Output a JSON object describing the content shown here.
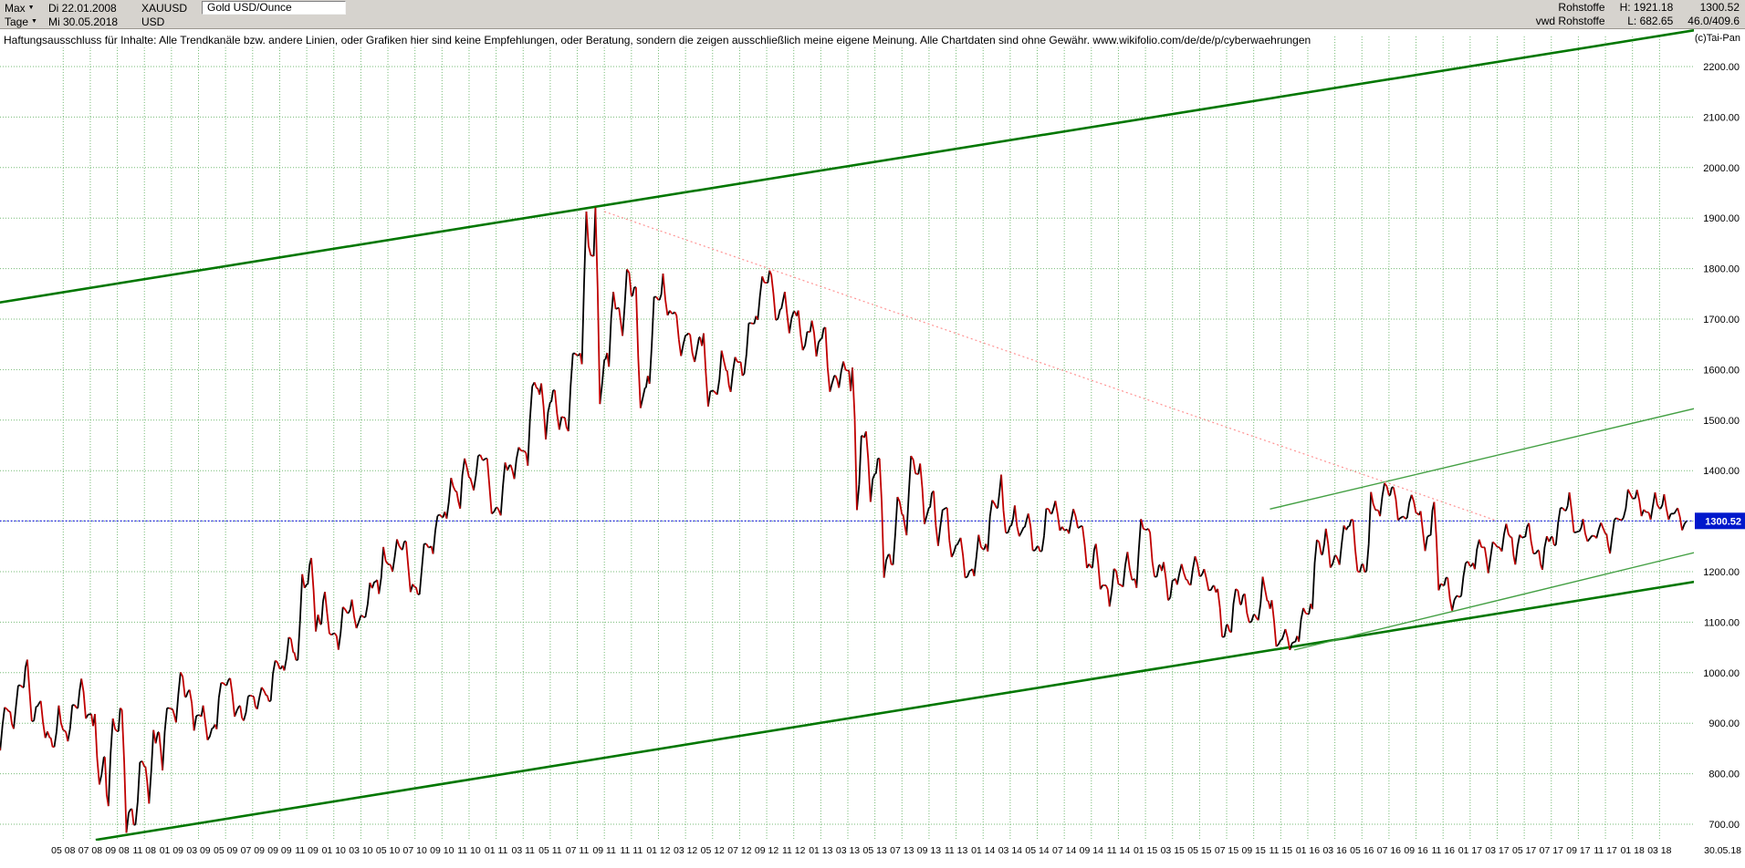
{
  "app": {
    "toolbar": {
      "range_selector": "Max",
      "period_selector": "Tage",
      "start_date": "Di 22.01.2008",
      "end_date": "Mi 30.05.2018",
      "symbol": "XAUUSD",
      "currency": "USD",
      "instrument_name": "Gold USD/Ounce",
      "category": "Rohstoffe",
      "provider": "vwd Rohstoffe",
      "high_label": "H: 1921.18",
      "low_label": "L: 682.65",
      "last_price": "1300.52",
      "change_info": "46.0/409.6"
    },
    "copyright": "(c)Tai-Pan",
    "disclaimer": "Haftungsausschluss für Inhalte: Alle Trendkanäle bzw. andere Linien, oder Grafiken hier sind keine Empfehlungen, oder Beratung, sondern die zeigen ausschließlich meine eigene Meinung. Alle Chartdaten sind ohne Gewähr.  www.wikifolio.com/de/de/p/cyberwaehrungen"
  },
  "axis": {
    "y_labels": [
      "2200.00",
      "2100.00",
      "2000.00",
      "1900.00",
      "1800.00",
      "1700.00",
      "1600.00",
      "1500.00",
      "1400.00",
      "1300.00",
      "1200.00",
      "1100.00",
      "1000.00",
      "900.00",
      "800.00",
      "700.00"
    ],
    "x_labels": [
      "05 08",
      "07 08",
      "09 08",
      "11 08",
      "01 09",
      "03 09",
      "05 09",
      "07 09",
      "09 09",
      "11 09",
      "01 10",
      "03 10",
      "05 10",
      "07 10",
      "09 10",
      "11 10",
      "01 11",
      "03 11",
      "05 11",
      "07 11",
      "09 11",
      "11 11",
      "01 12",
      "03 12",
      "05 12",
      "07 12",
      "09 12",
      "11 12",
      "01 13",
      "03 13",
      "05 13",
      "07 13",
      "09 13",
      "11 13",
      "01 14",
      "03 14",
      "05 14",
      "07 14",
      "09 14",
      "11 14",
      "01 15",
      "03 15",
      "05 15",
      "07 15",
      "09 15",
      "11 15",
      "01 16",
      "03 16",
      "05 16",
      "07 16",
      "09 16",
      "11 16",
      "01 17",
      "03 17",
      "05 17",
      "07 17",
      "09 17",
      "11 17",
      "01 18",
      "03 18"
    ],
    "first_tick_month": 4,
    "tick_step_months": 2,
    "last_date_label": "30.05.18",
    "current_price_label": "1300.52"
  },
  "chart_data": {
    "type": "candlestick",
    "title": "Gold USD/Ounce (XAUUSD)",
    "x_unit": "month",
    "start": "2008-01",
    "end": "2018-05",
    "ylim": [
      660,
      2260
    ],
    "grid": true,
    "open_first": 846,
    "close": [
      923,
      971,
      933,
      871,
      886,
      930,
      918,
      833,
      884,
      730,
      814,
      882,
      928,
      952,
      916,
      890,
      975,
      934,
      953,
      955,
      1008,
      1040,
      1175,
      1096,
      1078,
      1118,
      1113,
      1180,
      1215,
      1244,
      1169,
      1248,
      1308,
      1359,
      1386,
      1421,
      1327,
      1411,
      1439,
      1563,
      1536,
      1505,
      1628,
      1826,
      1620,
      1722,
      1746,
      1564,
      1738,
      1711,
      1668,
      1664,
      1558,
      1598,
      1615,
      1691,
      1772,
      1720,
      1715,
      1675,
      1661,
      1588,
      1598,
      1469,
      1394,
      1234,
      1313,
      1394,
      1327,
      1323,
      1253,
      1202,
      1244,
      1326,
      1291,
      1288,
      1250,
      1315,
      1282,
      1287,
      1208,
      1173,
      1175,
      1184,
      1283,
      1213,
      1183,
      1184,
      1191,
      1172,
      1095,
      1135,
      1115,
      1142,
      1065,
      1061,
      1116,
      1234,
      1232,
      1290,
      1215,
      1322,
      1351,
      1309,
      1316,
      1272,
      1173,
      1152,
      1211,
      1248,
      1249,
      1268,
      1269,
      1242,
      1269,
      1321,
      1280,
      1271,
      1275,
      1303,
      1345,
      1318,
      1325,
      1315,
      1300.52
    ],
    "high": [
      936,
      975,
      1032,
      946,
      935,
      936,
      988,
      918,
      920,
      930,
      825,
      892,
      930,
      1006,
      966,
      935,
      980,
      989,
      955,
      971,
      1024,
      1070,
      1195,
      1227,
      1160,
      1130,
      1145,
      1181,
      1249,
      1264,
      1260,
      1255,
      1313,
      1387,
      1424,
      1431,
      1424,
      1416,
      1447,
      1575,
      1577,
      1559,
      1632,
      1913,
      1921,
      1754,
      1802,
      1763,
      1744,
      1790,
      1714,
      1672,
      1672,
      1640,
      1625,
      1692,
      1787,
      1796,
      1754,
      1723,
      1697,
      1684,
      1616,
      1604,
      1488,
      1424,
      1348,
      1434,
      1416,
      1361,
      1326,
      1267,
      1278,
      1345,
      1392,
      1331,
      1315,
      1325,
      1345,
      1324,
      1290,
      1255,
      1208,
      1239,
      1307,
      1285,
      1223,
      1215,
      1232,
      1205,
      1175,
      1170,
      1156,
      1191,
      1146,
      1088,
      1128,
      1263,
      1285,
      1296,
      1303,
      1358,
      1375,
      1367,
      1352,
      1320,
      1338,
      1188,
      1220,
      1264,
      1261,
      1295,
      1273,
      1296,
      1270,
      1326,
      1357,
      1306,
      1297,
      1307,
      1366,
      1362,
      1357,
      1356,
      1326
    ],
    "low": [
      846,
      889,
      904,
      871,
      853,
      864,
      908,
      773,
      736,
      683,
      699,
      741,
      802,
      892,
      882,
      864,
      884,
      913,
      905,
      925,
      941,
      1000,
      1025,
      1075,
      1075,
      1044,
      1088,
      1110,
      1156,
      1200,
      1157,
      1155,
      1235,
      1305,
      1325,
      1361,
      1308,
      1307,
      1381,
      1410,
      1462,
      1478,
      1478,
      1603,
      1532,
      1604,
      1667,
      1523,
      1556,
      1704,
      1627,
      1613,
      1527,
      1547,
      1556,
      1588,
      1691,
      1698,
      1672,
      1636,
      1626,
      1555,
      1564,
      1322,
      1338,
      1180,
      1208,
      1272,
      1291,
      1251,
      1227,
      1186,
      1182,
      1240,
      1277,
      1268,
      1242,
      1240,
      1281,
      1273,
      1206,
      1161,
      1131,
      1170,
      1168,
      1190,
      1141,
      1170,
      1170,
      1162,
      1071,
      1080,
      1098,
      1104,
      1052,
      1045,
      1061,
      1115,
      1208,
      1209,
      1199,
      1199,
      1310,
      1302,
      1302,
      1241,
      1163,
      1122,
      1146,
      1205,
      1195,
      1240,
      1214,
      1236,
      1204,
      1251,
      1278,
      1260,
      1265,
      1236,
      1302,
      1307,
      1303,
      1301,
      1282
    ],
    "overlays": [
      {
        "name": "trend-channel-upper",
        "m1": -0.7,
        "p1": 1733,
        "m2": 124.6,
        "p2": 2272,
        "color": "#007700",
        "width": 2.6,
        "dash": ""
      },
      {
        "name": "trend-channel-lower",
        "m1": 6.4,
        "p1": 669,
        "m2": 124.6,
        "p2": 1180,
        "color": "#007700",
        "width": 2.6,
        "dash": ""
      },
      {
        "name": "inner-trend-upper",
        "m1": 93.2,
        "p1": 1324,
        "m2": 124.6,
        "p2": 1523,
        "color": "#44a044",
        "width": 1.4,
        "dash": ""
      },
      {
        "name": "inner-trend-lower",
        "m1": 95.0,
        "p1": 1045,
        "m2": 124.6,
        "p2": 1238,
        "color": "#44a044",
        "width": 1.4,
        "dash": ""
      },
      {
        "name": "downtrend-dotted",
        "m1": 44.0,
        "p1": 1913,
        "m2": 110.0,
        "p2": 1300.5,
        "color": "#ff9393",
        "width": 1.2,
        "dash": "2,3"
      },
      {
        "name": "current-price-line",
        "m1": -0.7,
        "p1": 1300.52,
        "m2": 124.6,
        "p2": 1300.52,
        "color": "#1414e6",
        "width": 1.2,
        "dash": "2,2"
      }
    ],
    "current_price": 1300.52,
    "colors": {
      "up_candle": "#000000",
      "down_candle": "#c00000",
      "grid": "#77bb77",
      "price_tag_bg": "#0018cc",
      "price_tag_text": "#ffffff"
    }
  }
}
